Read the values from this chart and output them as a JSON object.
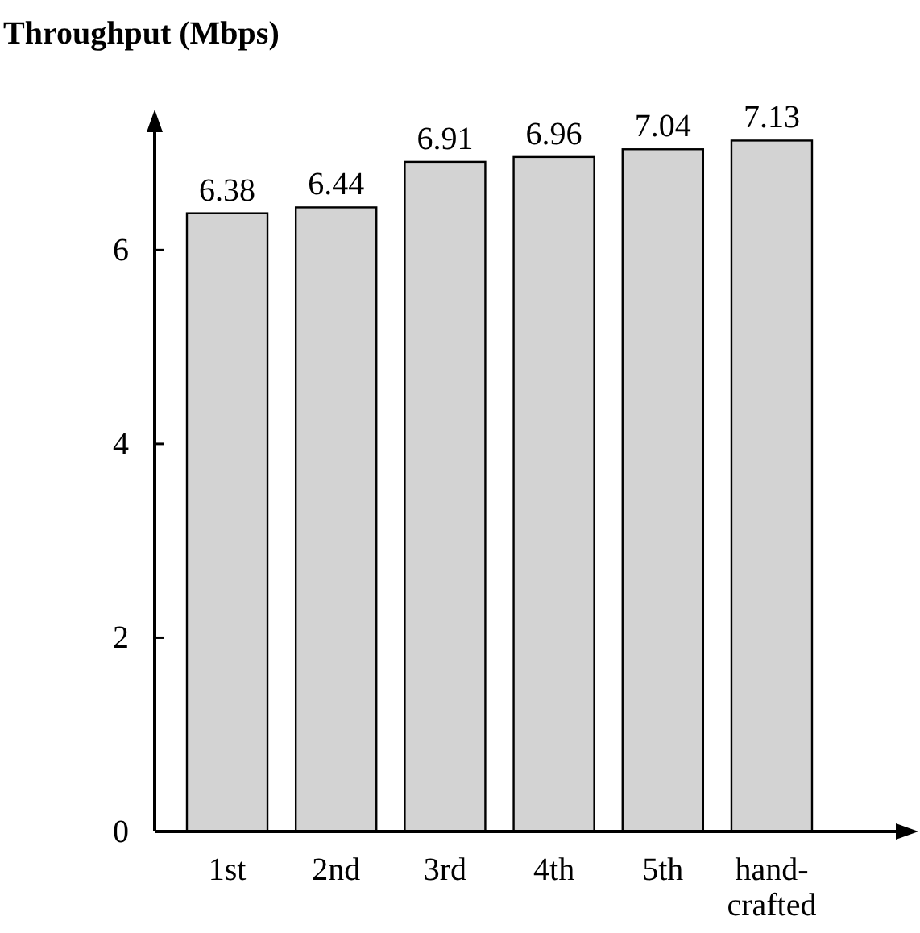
{
  "chart_data": {
    "type": "bar",
    "ylabel": "Throughput (Mbps)",
    "categories": [
      "1st",
      "2nd",
      "3rd",
      "4th",
      "5th",
      "hand-crafted"
    ],
    "values": [
      6.38,
      6.44,
      6.91,
      6.96,
      7.04,
      7.13
    ],
    "color": "#d3d3d3",
    "ylim": [
      0,
      7.25
    ],
    "yticks": [
      0,
      2,
      4,
      6
    ],
    "data_labels": true,
    "grid": false
  }
}
